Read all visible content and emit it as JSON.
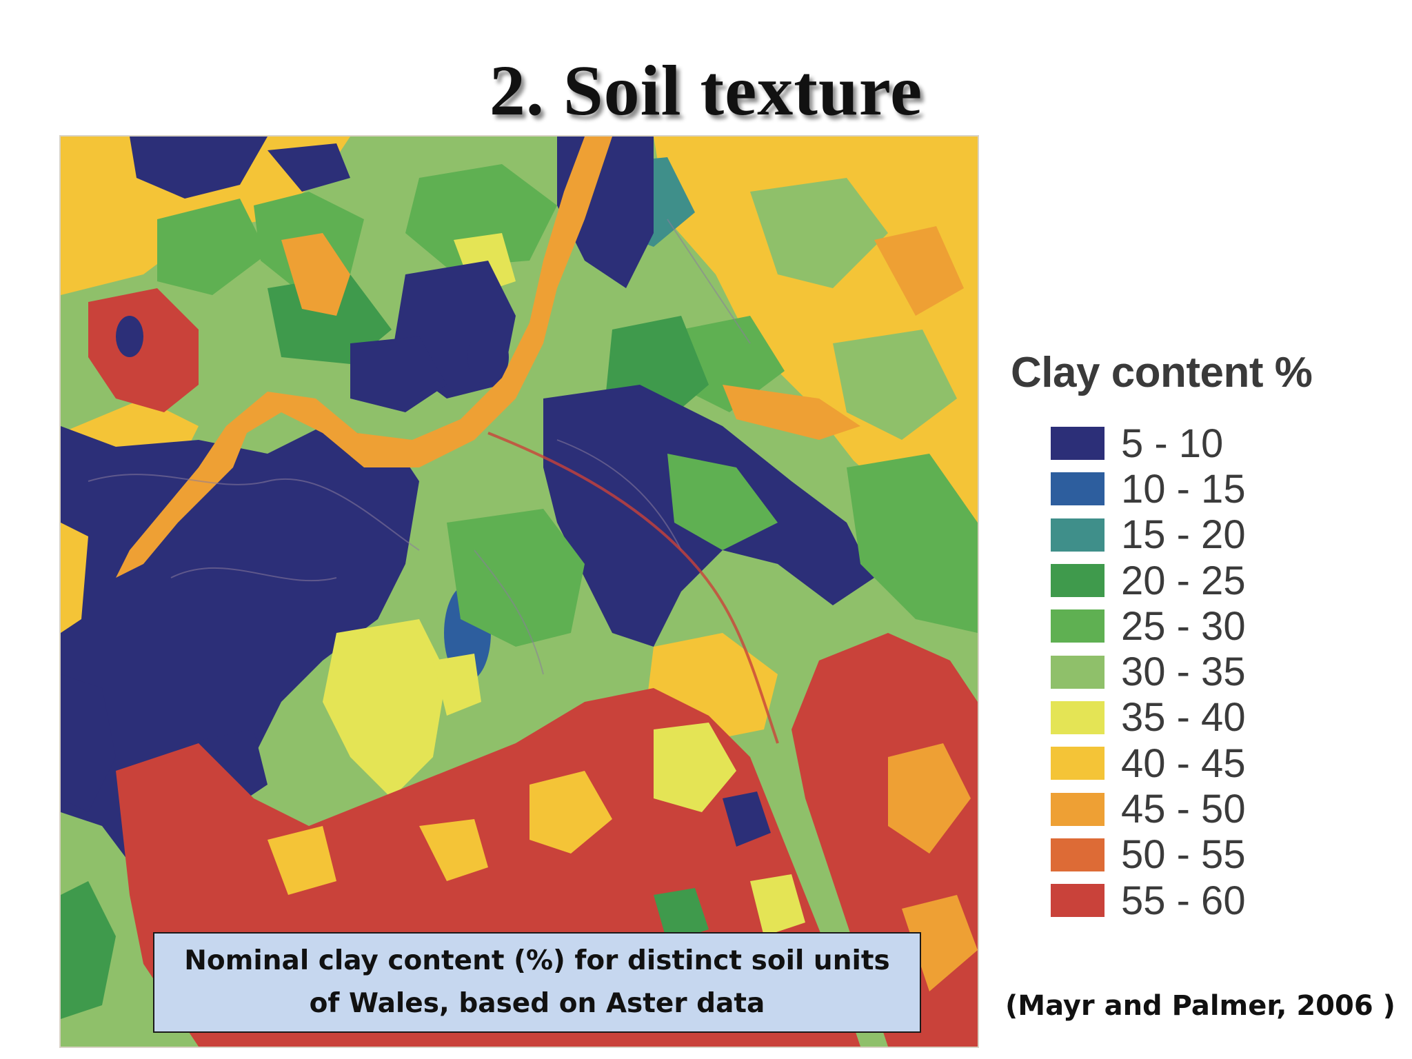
{
  "slide": {
    "title": "2. Soil texture",
    "caption": "Nominal clay content (%) for distinct soil units of Wales, based on Aster data",
    "citation": "(Mayr and Palmer, 2006 )"
  },
  "map": {
    "description_id": "clay-content-soil-map",
    "base_color": "#7fb850"
  },
  "legend": {
    "title": "Clay content %",
    "items": [
      {
        "label": "5 - 10",
        "color": "#2c2f78"
      },
      {
        "label": "10 - 15",
        "color": "#2d5e9e"
      },
      {
        "label": "15 - 20",
        "color": "#3f8f8a"
      },
      {
        "label": "20 - 25",
        "color": "#3f9a4c"
      },
      {
        "label": "25 - 30",
        "color": "#5fb052"
      },
      {
        "label": "30 - 35",
        "color": "#8fc06a"
      },
      {
        "label": "35 - 40",
        "color": "#e4e455"
      },
      {
        "label": "40 - 45",
        "color": "#f4c437"
      },
      {
        "label": "45 - 50",
        "color": "#eea034"
      },
      {
        "label": "50 - 55",
        "color": "#dd6b36"
      },
      {
        "label": "55 - 60",
        "color": "#c9423a"
      }
    ]
  }
}
